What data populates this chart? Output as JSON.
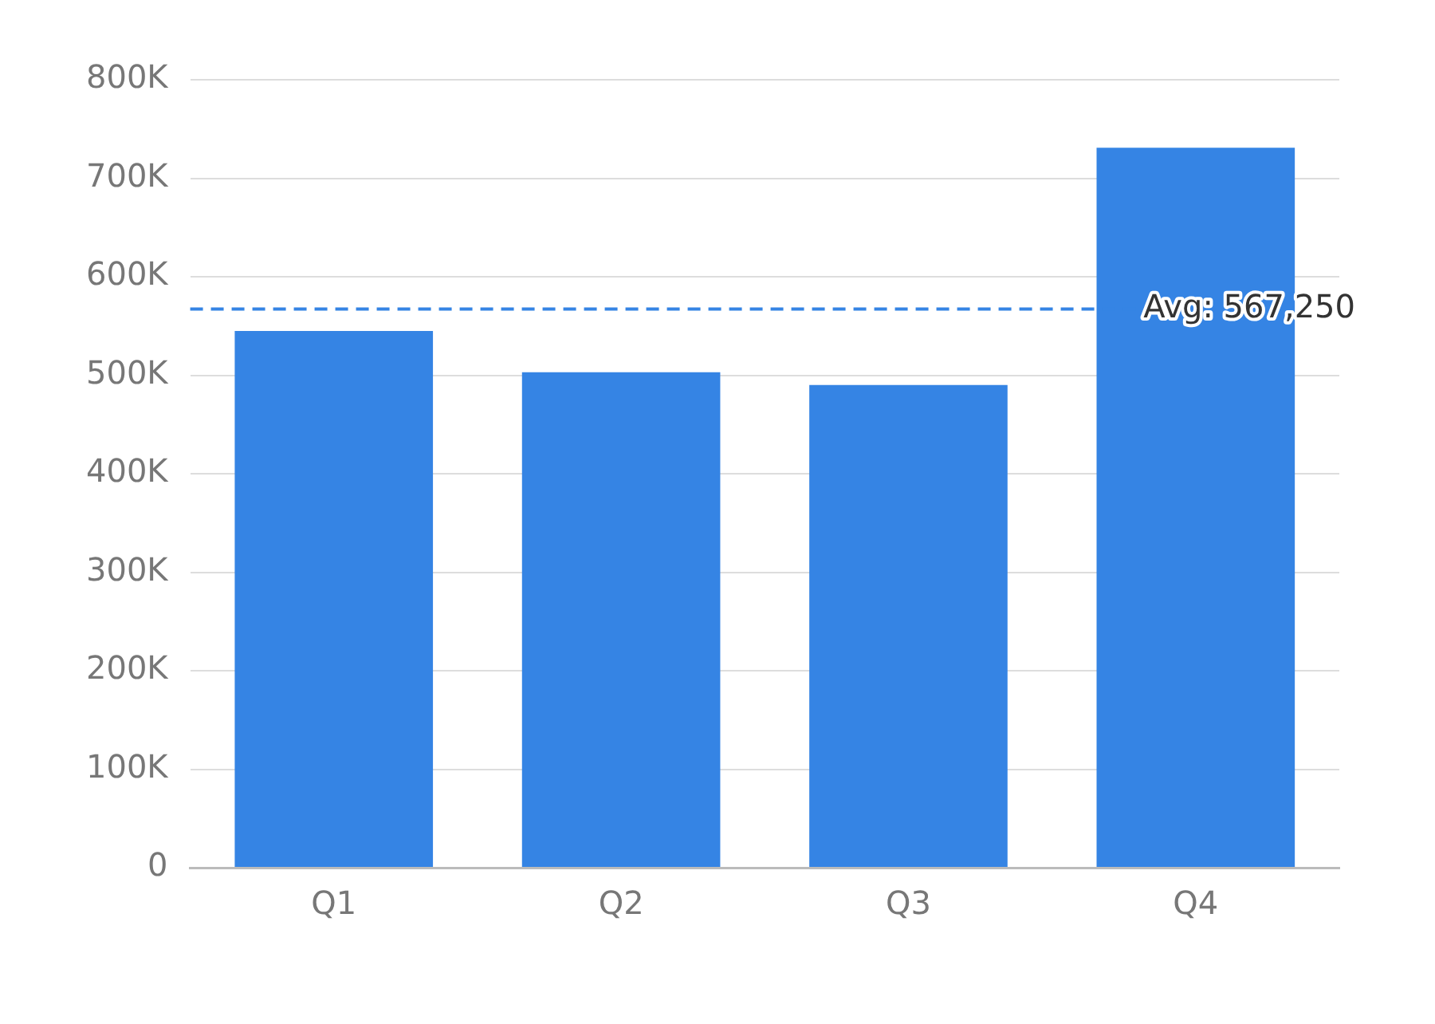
{
  "chart_data": {
    "type": "bar",
    "categories": [
      "Q1",
      "Q2",
      "Q3",
      "Q4"
    ],
    "values": [
      545000,
      503000,
      490000,
      731000
    ],
    "color": "#3584e4",
    "ylim": [
      0,
      800000
    ],
    "yticks": [
      {
        "value": 0,
        "label": "0"
      },
      {
        "value": 100000,
        "label": "100K"
      },
      {
        "value": 200000,
        "label": "200K"
      },
      {
        "value": 300000,
        "label": "300K"
      },
      {
        "value": 400000,
        "label": "400K"
      },
      {
        "value": 500000,
        "label": "500K"
      },
      {
        "value": 600000,
        "label": "600K"
      },
      {
        "value": 700000,
        "label": "700K"
      },
      {
        "value": 800000,
        "label": "800K"
      }
    ],
    "grid": "y",
    "legend": false,
    "ref_lines": [
      {
        "axis": "y",
        "value": 567250,
        "label": "Avg: 567,250",
        "color": "#3584e4",
        "line_style": "dashed"
      }
    ]
  }
}
